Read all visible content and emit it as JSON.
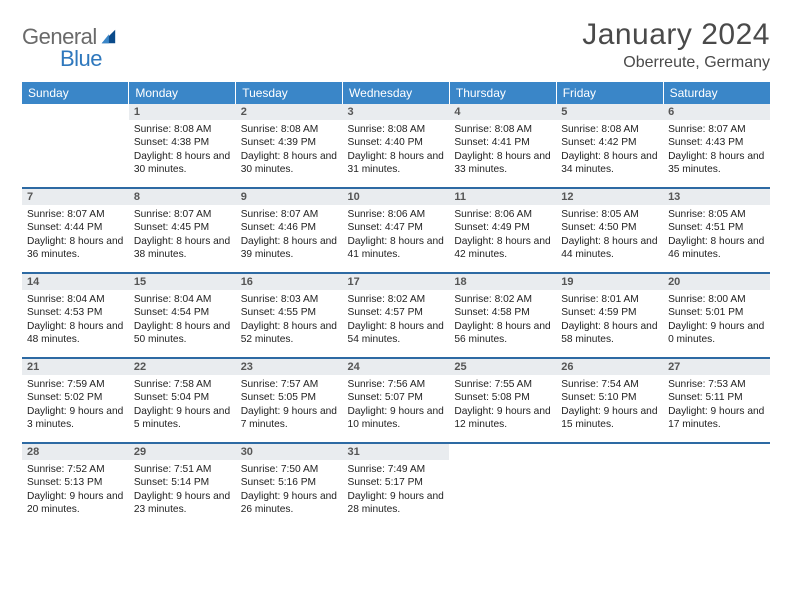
{
  "logo": {
    "t1": "General",
    "t2": "Blue"
  },
  "title": "January 2024",
  "location": "Oberreute, Germany",
  "header_bg": "#3a86c8",
  "header_fg": "#ffffff",
  "sep_color": "#2d6aa3",
  "daynum_bg": "#e9ecef",
  "text_color": "#222222",
  "weekdays": [
    "Sunday",
    "Monday",
    "Tuesday",
    "Wednesday",
    "Thursday",
    "Friday",
    "Saturday"
  ],
  "weeks": [
    [
      {
        "n": "",
        "sr": "",
        "ss": "",
        "dl": ""
      },
      {
        "n": "1",
        "sr": "Sunrise: 8:08 AM",
        "ss": "Sunset: 4:38 PM",
        "dl": "Daylight: 8 hours and 30 minutes."
      },
      {
        "n": "2",
        "sr": "Sunrise: 8:08 AM",
        "ss": "Sunset: 4:39 PM",
        "dl": "Daylight: 8 hours and 30 minutes."
      },
      {
        "n": "3",
        "sr": "Sunrise: 8:08 AM",
        "ss": "Sunset: 4:40 PM",
        "dl": "Daylight: 8 hours and 31 minutes."
      },
      {
        "n": "4",
        "sr": "Sunrise: 8:08 AM",
        "ss": "Sunset: 4:41 PM",
        "dl": "Daylight: 8 hours and 33 minutes."
      },
      {
        "n": "5",
        "sr": "Sunrise: 8:08 AM",
        "ss": "Sunset: 4:42 PM",
        "dl": "Daylight: 8 hours and 34 minutes."
      },
      {
        "n": "6",
        "sr": "Sunrise: 8:07 AM",
        "ss": "Sunset: 4:43 PM",
        "dl": "Daylight: 8 hours and 35 minutes."
      }
    ],
    [
      {
        "n": "7",
        "sr": "Sunrise: 8:07 AM",
        "ss": "Sunset: 4:44 PM",
        "dl": "Daylight: 8 hours and 36 minutes."
      },
      {
        "n": "8",
        "sr": "Sunrise: 8:07 AM",
        "ss": "Sunset: 4:45 PM",
        "dl": "Daylight: 8 hours and 38 minutes."
      },
      {
        "n": "9",
        "sr": "Sunrise: 8:07 AM",
        "ss": "Sunset: 4:46 PM",
        "dl": "Daylight: 8 hours and 39 minutes."
      },
      {
        "n": "10",
        "sr": "Sunrise: 8:06 AM",
        "ss": "Sunset: 4:47 PM",
        "dl": "Daylight: 8 hours and 41 minutes."
      },
      {
        "n": "11",
        "sr": "Sunrise: 8:06 AM",
        "ss": "Sunset: 4:49 PM",
        "dl": "Daylight: 8 hours and 42 minutes."
      },
      {
        "n": "12",
        "sr": "Sunrise: 8:05 AM",
        "ss": "Sunset: 4:50 PM",
        "dl": "Daylight: 8 hours and 44 minutes."
      },
      {
        "n": "13",
        "sr": "Sunrise: 8:05 AM",
        "ss": "Sunset: 4:51 PM",
        "dl": "Daylight: 8 hours and 46 minutes."
      }
    ],
    [
      {
        "n": "14",
        "sr": "Sunrise: 8:04 AM",
        "ss": "Sunset: 4:53 PM",
        "dl": "Daylight: 8 hours and 48 minutes."
      },
      {
        "n": "15",
        "sr": "Sunrise: 8:04 AM",
        "ss": "Sunset: 4:54 PM",
        "dl": "Daylight: 8 hours and 50 minutes."
      },
      {
        "n": "16",
        "sr": "Sunrise: 8:03 AM",
        "ss": "Sunset: 4:55 PM",
        "dl": "Daylight: 8 hours and 52 minutes."
      },
      {
        "n": "17",
        "sr": "Sunrise: 8:02 AM",
        "ss": "Sunset: 4:57 PM",
        "dl": "Daylight: 8 hours and 54 minutes."
      },
      {
        "n": "18",
        "sr": "Sunrise: 8:02 AM",
        "ss": "Sunset: 4:58 PM",
        "dl": "Daylight: 8 hours and 56 minutes."
      },
      {
        "n": "19",
        "sr": "Sunrise: 8:01 AM",
        "ss": "Sunset: 4:59 PM",
        "dl": "Daylight: 8 hours and 58 minutes."
      },
      {
        "n": "20",
        "sr": "Sunrise: 8:00 AM",
        "ss": "Sunset: 5:01 PM",
        "dl": "Daylight: 9 hours and 0 minutes."
      }
    ],
    [
      {
        "n": "21",
        "sr": "Sunrise: 7:59 AM",
        "ss": "Sunset: 5:02 PM",
        "dl": "Daylight: 9 hours and 3 minutes."
      },
      {
        "n": "22",
        "sr": "Sunrise: 7:58 AM",
        "ss": "Sunset: 5:04 PM",
        "dl": "Daylight: 9 hours and 5 minutes."
      },
      {
        "n": "23",
        "sr": "Sunrise: 7:57 AM",
        "ss": "Sunset: 5:05 PM",
        "dl": "Daylight: 9 hours and 7 minutes."
      },
      {
        "n": "24",
        "sr": "Sunrise: 7:56 AM",
        "ss": "Sunset: 5:07 PM",
        "dl": "Daylight: 9 hours and 10 minutes."
      },
      {
        "n": "25",
        "sr": "Sunrise: 7:55 AM",
        "ss": "Sunset: 5:08 PM",
        "dl": "Daylight: 9 hours and 12 minutes."
      },
      {
        "n": "26",
        "sr": "Sunrise: 7:54 AM",
        "ss": "Sunset: 5:10 PM",
        "dl": "Daylight: 9 hours and 15 minutes."
      },
      {
        "n": "27",
        "sr": "Sunrise: 7:53 AM",
        "ss": "Sunset: 5:11 PM",
        "dl": "Daylight: 9 hours and 17 minutes."
      }
    ],
    [
      {
        "n": "28",
        "sr": "Sunrise: 7:52 AM",
        "ss": "Sunset: 5:13 PM",
        "dl": "Daylight: 9 hours and 20 minutes."
      },
      {
        "n": "29",
        "sr": "Sunrise: 7:51 AM",
        "ss": "Sunset: 5:14 PM",
        "dl": "Daylight: 9 hours and 23 minutes."
      },
      {
        "n": "30",
        "sr": "Sunrise: 7:50 AM",
        "ss": "Sunset: 5:16 PM",
        "dl": "Daylight: 9 hours and 26 minutes."
      },
      {
        "n": "31",
        "sr": "Sunrise: 7:49 AM",
        "ss": "Sunset: 5:17 PM",
        "dl": "Daylight: 9 hours and 28 minutes."
      },
      {
        "n": "",
        "sr": "",
        "ss": "",
        "dl": ""
      },
      {
        "n": "",
        "sr": "",
        "ss": "",
        "dl": ""
      },
      {
        "n": "",
        "sr": "",
        "ss": "",
        "dl": ""
      }
    ]
  ]
}
